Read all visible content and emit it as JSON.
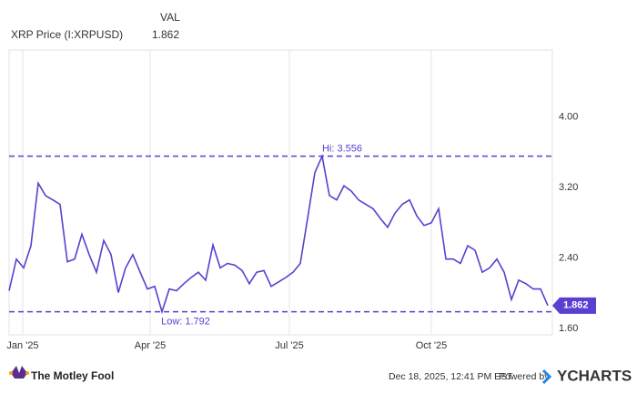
{
  "chart_data": {
    "type": "line",
    "header_label": "VAL",
    "series": [
      {
        "name": "XRP Price (I:XRPUSD)",
        "color": "#5b3fd0",
        "values": [
          2.03,
          2.39,
          2.29,
          2.54,
          3.25,
          3.11,
          3.06,
          3.01,
          2.36,
          2.39,
          2.67,
          2.44,
          2.24,
          2.6,
          2.44,
          2.01,
          2.29,
          2.44,
          2.24,
          2.05,
          2.08,
          1.792,
          2.05,
          2.03,
          2.11,
          2.18,
          2.24,
          2.15,
          2.55,
          2.29,
          2.34,
          2.32,
          2.26,
          2.11,
          2.24,
          2.26,
          2.08,
          2.13,
          2.18,
          2.24,
          2.34,
          2.85,
          3.37,
          3.556,
          3.11,
          3.06,
          3.22,
          3.16,
          3.06,
          3.01,
          2.96,
          2.85,
          2.75,
          2.91,
          3.01,
          3.06,
          2.88,
          2.77,
          2.8,
          2.96,
          2.39,
          2.39,
          2.34,
          2.54,
          2.49,
          2.24,
          2.29,
          2.39,
          2.24,
          1.93,
          2.15,
          2.11,
          2.05,
          2.05,
          1.862
        ]
      }
    ],
    "xlim": [
      0,
      74.625
    ],
    "xticks": [
      {
        "value": 1.875,
        "label": "Jan '25"
      },
      {
        "value": 19.375,
        "label": "Apr '25"
      },
      {
        "value": 38.5,
        "label": "Jul '25"
      },
      {
        "value": 58,
        "label": "Oct '25"
      }
    ],
    "ylim": [
      1.53,
      4.76
    ],
    "yticks": [
      {
        "value": 1.6,
        "label": "1.60"
      },
      {
        "value": 2.4,
        "label": "2.40"
      },
      {
        "value": 3.2,
        "label": "3.20"
      },
      {
        "value": 4.0,
        "label": "4.00"
      }
    ],
    "hi": {
      "value": 3.556,
      "label": "Hi: 3.556"
    },
    "low": {
      "value": 1.792,
      "label": "Low: 1.792"
    },
    "grid": true
  },
  "footer": {
    "brand": "The Motley Fool",
    "timestamp": "Dec 18, 2025, 12:41 PM EST",
    "powered": "Powered by",
    "source": "YCHARTS"
  }
}
